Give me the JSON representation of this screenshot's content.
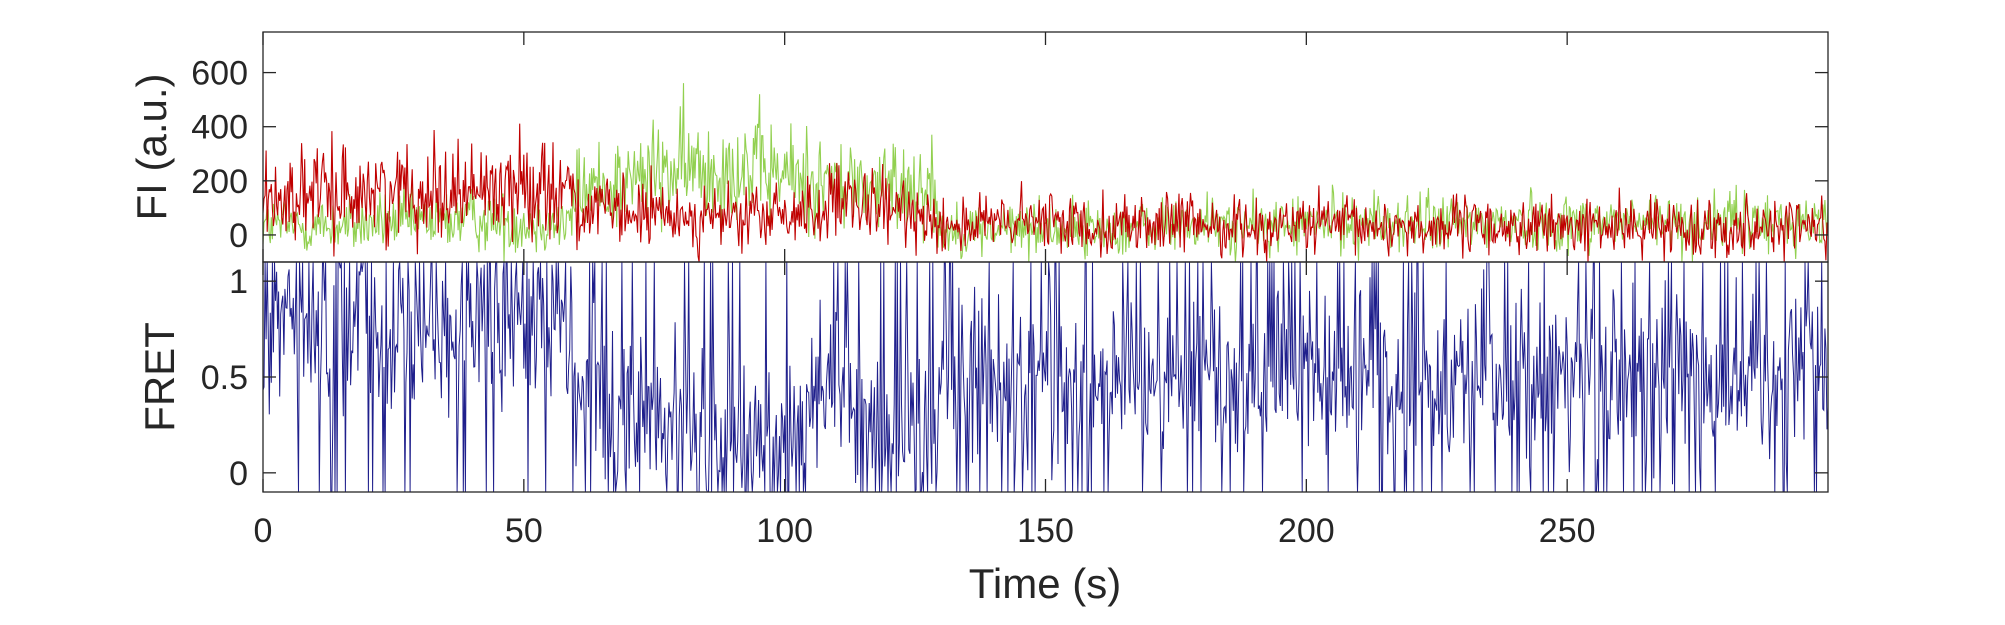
{
  "chart_data": [
    {
      "type": "line",
      "ylabel": "FI (a.u.)",
      "xlim": [
        0,
        300
      ],
      "ylim": [
        -100,
        750
      ],
      "yticks": [
        "0",
        "200",
        "400",
        "600"
      ],
      "ytick_values": [
        0,
        200,
        400,
        600
      ],
      "x_tick_labels_shown": false,
      "series": [
        {
          "color": "#92d050",
          "x": [
            0,
            10,
            20,
            30,
            40,
            50,
            55,
            59,
            60,
            70,
            80,
            90,
            100,
            110,
            120,
            128,
            130,
            140,
            150,
            160,
            170,
            180,
            190,
            200,
            210,
            220,
            230,
            240,
            250,
            260,
            270,
            280,
            290,
            300
          ],
          "values": [
            40,
            30,
            40,
            50,
            60,
            40,
            50,
            40,
            160,
            200,
            240,
            260,
            220,
            190,
            170,
            200,
            20,
            20,
            30,
            20,
            30,
            40,
            30,
            40,
            50,
            40,
            40,
            50,
            40,
            50,
            40,
            50,
            40,
            50
          ]
        },
        {
          "color": "#c00000",
          "x": [
            0,
            10,
            20,
            30,
            40,
            50,
            55,
            59,
            60,
            70,
            80,
            90,
            100,
            110,
            120,
            128,
            130,
            140,
            150,
            160,
            170,
            180,
            190,
            200,
            210,
            220,
            230,
            240,
            250,
            260,
            270,
            280,
            290,
            300
          ],
          "values": [
            140,
            150,
            160,
            170,
            170,
            180,
            190,
            180,
            90,
            80,
            70,
            60,
            70,
            110,
            90,
            80,
            40,
            40,
            50,
            40,
            40,
            40,
            30,
            40,
            30,
            30,
            30,
            30,
            30,
            30,
            30,
            30,
            40,
            30
          ]
        }
      ]
    },
    {
      "type": "line",
      "ylabel": "FRET",
      "xlabel": "Time (s)",
      "xlim": [
        0,
        300
      ],
      "ylim": [
        -0.1,
        1.1
      ],
      "yticks": [
        "0",
        "0.5",
        "1"
      ],
      "ytick_values": [
        0,
        0.5,
        1
      ],
      "xticks": [
        "0",
        "50",
        "100",
        "150",
        "200",
        "250"
      ],
      "xtick_values": [
        0,
        50,
        100,
        150,
        200,
        250
      ],
      "series": [
        {
          "color": "#1f1f8c",
          "x": [
            0,
            10,
            20,
            30,
            40,
            50,
            55,
            59,
            60,
            65,
            70,
            80,
            90,
            100,
            105,
            110,
            115,
            120,
            128,
            130,
            140,
            150,
            160,
            170,
            180,
            190,
            200,
            210,
            220,
            230,
            240,
            250,
            260,
            270,
            280,
            290,
            300
          ],
          "values": [
            0.75,
            0.8,
            0.8,
            0.75,
            0.8,
            0.8,
            0.8,
            0.8,
            0.35,
            0.3,
            0.25,
            0.25,
            0.2,
            0.2,
            0.4,
            0.55,
            0.3,
            0.2,
            0.25,
            0.5,
            0.55,
            0.5,
            0.5,
            0.5,
            0.5,
            0.5,
            0.5,
            0.5,
            0.5,
            0.5,
            0.5,
            0.5,
            0.5,
            0.5,
            0.5,
            0.5,
            0.5
          ]
        }
      ]
    }
  ]
}
